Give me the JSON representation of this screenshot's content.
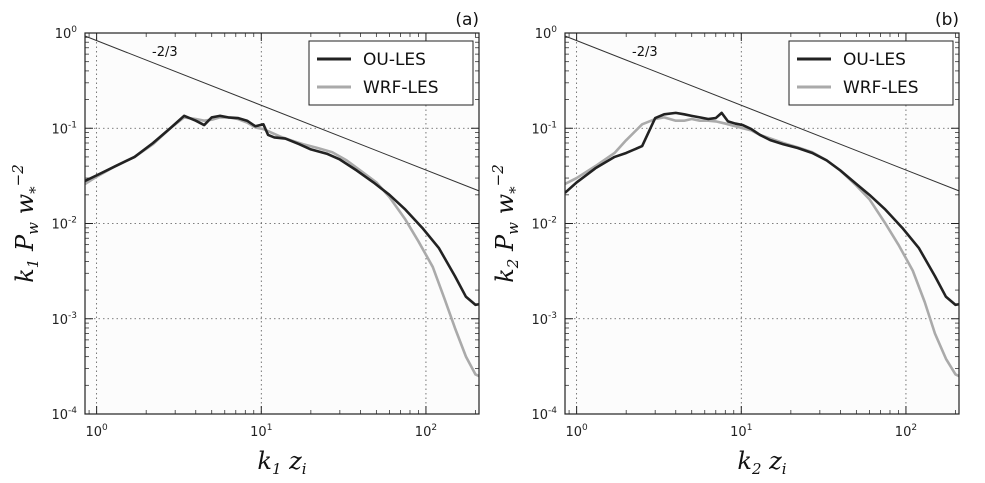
{
  "chart_data": [
    {
      "panel": "(a)",
      "type": "line",
      "xlabel": {
        "main": "k",
        "sub1": "1",
        "main2": " z",
        "sub2": "i"
      },
      "ylabel": {
        "main": "k",
        "sub1": "1",
        "main2": " P",
        "sub2": "w",
        "main3": " w",
        "sub3": "*",
        "sup": "−2"
      },
      "xscale": "log",
      "yscale": "log",
      "xlim": [
        0.85,
        210
      ],
      "ylim": [
        0.0001,
        1
      ],
      "xticks": [
        {
          "base": "10",
          "exp": "0",
          "value": 1
        },
        {
          "base": "10",
          "exp": "1",
          "value": 10
        },
        {
          "base": "10",
          "exp": "2",
          "value": 100
        }
      ],
      "yticks": [
        {
          "base": "10",
          "exp": "-4",
          "value": 0.0001
        },
        {
          "base": "10",
          "exp": "-3",
          "value": 0.001
        },
        {
          "base": "10",
          "exp": "-2",
          "value": 0.01
        },
        {
          "base": "10",
          "exp": "-1",
          "value": 0.1
        },
        {
          "base": "10",
          "exp": "0",
          "value": 1
        }
      ],
      "grid": true,
      "legend_position": "top-right",
      "annotation": {
        "text": "-2/3",
        "line_x": [
          0.85,
          210
        ],
        "line_y": [
          0.93,
          0.022
        ]
      },
      "series": [
        {
          "name": "OU-LES",
          "color": "#222222",
          "x": [
            0.85,
            1.0,
            1.3,
            1.7,
            2.2,
            2.8,
            3.4,
            4.0,
            4.5,
            5.0,
            5.6,
            6.3,
            7.2,
            8.2,
            9.2,
            10.3,
            11.0,
            12.0,
            14.0,
            17.0,
            20.0,
            25.0,
            30.0,
            38.0,
            48.0,
            60.0,
            75.0,
            95.0,
            120.0,
            150.0,
            175.0,
            200.0,
            210.0
          ],
          "y": [
            0.028,
            0.032,
            0.04,
            0.05,
            0.07,
            0.1,
            0.135,
            0.12,
            0.108,
            0.13,
            0.135,
            0.13,
            0.128,
            0.12,
            0.105,
            0.11,
            0.085,
            0.08,
            0.078,
            0.068,
            0.06,
            0.054,
            0.047,
            0.036,
            0.027,
            0.02,
            0.014,
            0.009,
            0.0055,
            0.0028,
            0.0017,
            0.0014,
            0.00142
          ]
        },
        {
          "name": "WRF-LES",
          "color": "#aaaaaa",
          "x": [
            0.85,
            1.0,
            1.3,
            1.7,
            2.2,
            2.8,
            3.4,
            4.0,
            4.5,
            5.0,
            5.6,
            6.3,
            7.2,
            8.2,
            9.2,
            10.3,
            11.5,
            13.0,
            15.0,
            18.0,
            22.0,
            27.0,
            33.0,
            40.0,
            50.0,
            60.0,
            75.0,
            90.0,
            110.0,
            130.0,
            150.0,
            175.0,
            200.0,
            210.0
          ],
          "y": [
            0.026,
            0.031,
            0.04,
            0.05,
            0.068,
            0.1,
            0.13,
            0.125,
            0.12,
            0.123,
            0.13,
            0.13,
            0.125,
            0.115,
            0.102,
            0.098,
            0.09,
            0.082,
            0.075,
            0.068,
            0.062,
            0.056,
            0.046,
            0.036,
            0.027,
            0.019,
            0.011,
            0.0065,
            0.0035,
            0.0016,
            0.0008,
            0.0004,
            0.00026,
            0.00025
          ]
        }
      ]
    },
    {
      "panel": "(b)",
      "type": "line",
      "xlabel": {
        "main": "k",
        "sub1": "2",
        "main2": " z",
        "sub2": "i"
      },
      "ylabel": {
        "main": "k",
        "sub1": "2",
        "main2": " P",
        "sub2": "w",
        "main3": " w",
        "sub3": "*",
        "sup": "−2"
      },
      "xscale": "log",
      "yscale": "log",
      "xlim": [
        0.85,
        210
      ],
      "ylim": [
        0.0001,
        1
      ],
      "xticks": [
        {
          "base": "10",
          "exp": "0",
          "value": 1
        },
        {
          "base": "10",
          "exp": "1",
          "value": 10
        },
        {
          "base": "10",
          "exp": "2",
          "value": 100
        }
      ],
      "yticks": [
        {
          "base": "10",
          "exp": "-4",
          "value": 0.0001
        },
        {
          "base": "10",
          "exp": "-3",
          "value": 0.001
        },
        {
          "base": "10",
          "exp": "-2",
          "value": 0.01
        },
        {
          "base": "10",
          "exp": "-1",
          "value": 0.1
        },
        {
          "base": "10",
          "exp": "0",
          "value": 1
        }
      ],
      "grid": true,
      "legend_position": "top-right",
      "annotation": {
        "text": "-2/3",
        "line_x": [
          0.85,
          210
        ],
        "line_y": [
          0.93,
          0.022
        ]
      },
      "series": [
        {
          "name": "OU-LES",
          "color": "#222222",
          "x": [
            0.85,
            1.0,
            1.3,
            1.7,
            2.0,
            2.5,
            3.0,
            3.4,
            4.0,
            4.5,
            5.0,
            5.6,
            6.3,
            7.0,
            7.6,
            8.3,
            9.2,
            10.2,
            11.5,
            13.0,
            15.0,
            18.0,
            22.0,
            27.0,
            33.0,
            40.0,
            50.0,
            60.0,
            75.0,
            95.0,
            120.0,
            150.0,
            175.0,
            200.0,
            210.0
          ],
          "y": [
            0.021,
            0.027,
            0.038,
            0.05,
            0.055,
            0.065,
            0.128,
            0.14,
            0.145,
            0.14,
            0.135,
            0.13,
            0.125,
            0.128,
            0.145,
            0.118,
            0.112,
            0.108,
            0.098,
            0.085,
            0.075,
            0.068,
            0.062,
            0.055,
            0.046,
            0.036,
            0.026,
            0.02,
            0.014,
            0.009,
            0.0055,
            0.0028,
            0.0017,
            0.0014,
            0.00142
          ]
        },
        {
          "name": "WRF-LES",
          "color": "#aaaaaa",
          "x": [
            0.85,
            1.0,
            1.3,
            1.7,
            2.0,
            2.5,
            3.0,
            3.4,
            4.0,
            4.5,
            5.0,
            5.6,
            6.3,
            7.0,
            8.0,
            9.2,
            10.2,
            11.5,
            13.0,
            15.0,
            18.0,
            22.0,
            27.0,
            33.0,
            40.0,
            50.0,
            60.0,
            75.0,
            90.0,
            110.0,
            130.0,
            150.0,
            175.0,
            200.0,
            210.0
          ],
          "y": [
            0.026,
            0.03,
            0.04,
            0.055,
            0.075,
            0.11,
            0.125,
            0.13,
            0.12,
            0.12,
            0.125,
            0.12,
            0.12,
            0.118,
            0.112,
            0.105,
            0.1,
            0.095,
            0.085,
            0.078,
            0.07,
            0.063,
            0.056,
            0.046,
            0.036,
            0.025,
            0.018,
            0.01,
            0.006,
            0.0032,
            0.0015,
            0.0007,
            0.00038,
            0.00026,
            0.00025
          ]
        }
      ]
    }
  ]
}
